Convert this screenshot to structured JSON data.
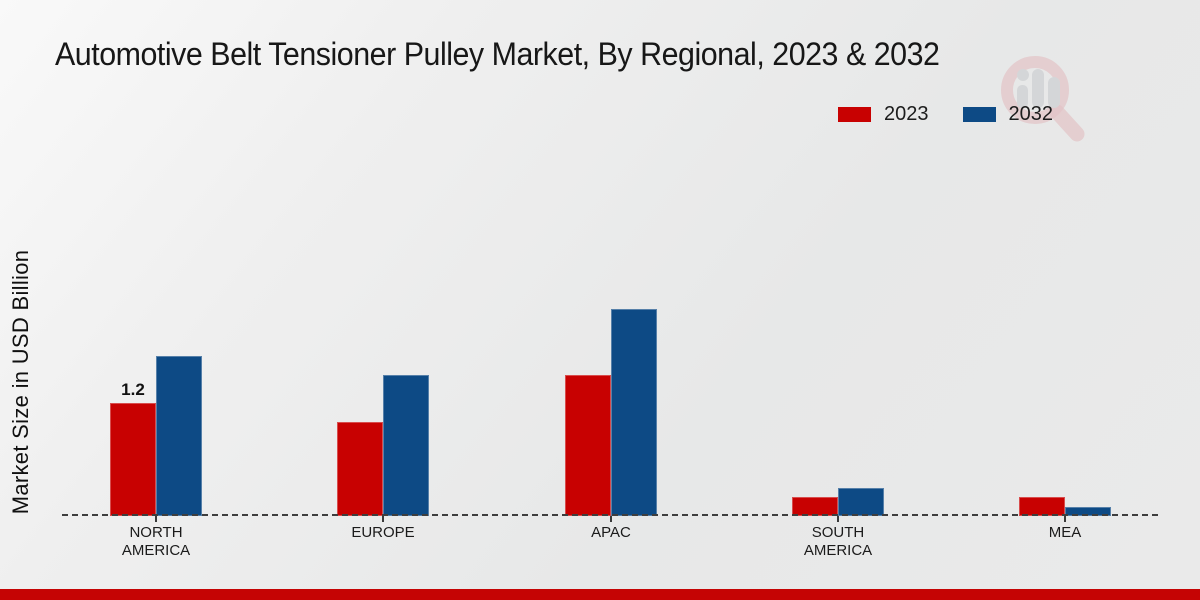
{
  "title": "Automotive Belt Tensioner Pulley Market, By Regional, 2023 & 2032",
  "y_axis_label": "Market Size in USD Billion",
  "legend": {
    "items": [
      {
        "label": "2023",
        "color": "#c80101"
      },
      {
        "label": "2032",
        "color": "#0d4a85"
      }
    ],
    "position": "top-right"
  },
  "watermark_icon": "magnifier-bar-chart-logo",
  "colors": {
    "series_2023_red": "#c80101",
    "series_2032_blue": "#0d4a85",
    "footer_bar_red": "#c50404",
    "axis_dash_gray": "#3e3e3e"
  },
  "chart_data": {
    "type": "bar",
    "title": "Automotive Belt Tensioner Pulley Market, By Regional, 2023 & 2032",
    "categories": [
      "NORTH AMERICA",
      "EUROPE",
      "APAC",
      "SOUTH AMERICA",
      "MEA"
    ],
    "series": [
      {
        "name": "2023",
        "color": "#c80101",
        "values": [
          1.2,
          1.0,
          1.5,
          0.2,
          0.2
        ]
      },
      {
        "name": "2032",
        "color": "#0d4a85",
        "values": [
          1.7,
          1.5,
          2.2,
          0.3,
          0.1
        ]
      }
    ],
    "xlabel": "",
    "ylabel": "Market Size in USD Billion",
    "y_axis_ticks_visible": false,
    "grid": false,
    "legend_position": "top-right",
    "annotations": [
      {
        "category_index": 0,
        "series_index": 0,
        "text": "1.2"
      }
    ]
  }
}
